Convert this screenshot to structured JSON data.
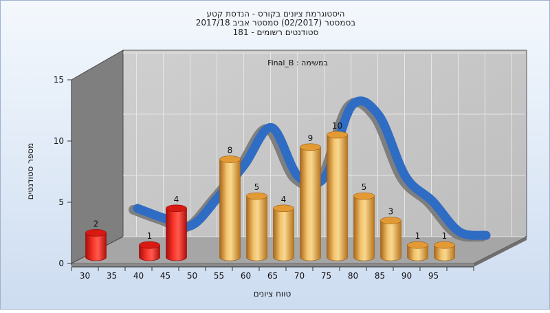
{
  "chart_data": {
    "type": "bar",
    "title_lines": [
      "היסטוגרמת ציונים בקורס - הנדסת קטע",
      "בסמסטר  (02/2017)  סמסטר אביב 2017/18",
      "סטודנטים רשומים - 181"
    ],
    "annotation": "במשימה : Final_B",
    "xlabel": "טווח ציונים",
    "ylabel": "מספר סטודנטים",
    "x_tick_labels": [
      "30",
      "35",
      "40",
      "45",
      "50",
      "55",
      "60",
      "65",
      "70",
      "75",
      "80",
      "85",
      "90",
      "95"
    ],
    "y_tick_labels": [
      "0",
      "5",
      "10",
      "15"
    ],
    "ylim": [
      0,
      15
    ],
    "grid": true,
    "view": "3d",
    "bars": [
      {
        "label": "30",
        "value": 2,
        "color": "red"
      },
      {
        "label": "40",
        "value": 1,
        "color": "red"
      },
      {
        "label": "45",
        "value": 4,
        "color": "red"
      },
      {
        "label": "55",
        "value": 8,
        "color": "orange"
      },
      {
        "label": "60",
        "value": 5,
        "color": "orange"
      },
      {
        "label": "65",
        "value": 4,
        "color": "orange"
      },
      {
        "label": "70",
        "value": 9,
        "color": "orange"
      },
      {
        "label": "75",
        "value": 10,
        "color": "orange"
      },
      {
        "label": "80",
        "value": 5,
        "color": "orange"
      },
      {
        "label": "85",
        "value": 3,
        "color": "orange"
      },
      {
        "label": "90",
        "value": 1,
        "color": "orange"
      },
      {
        "label": "95",
        "value": 1,
        "color": "orange"
      }
    ],
    "curve": {
      "x": [
        35,
        40,
        45,
        50,
        55,
        60,
        65,
        70,
        75,
        80,
        85,
        90,
        95,
        100
      ],
      "y": [
        3.4,
        2.6,
        2.0,
        4.3,
        7.0,
        10.0,
        6.0,
        6.0,
        11.8,
        11.0,
        6.0,
        4.0,
        1.5,
        1.2
      ]
    },
    "colors": {
      "red": "#e41b17",
      "orange": "#e8a33c",
      "curve": "#2f6cc4",
      "curve_back": "#777777",
      "back_wall": "#c6c6c6",
      "left_wall": "#808080",
      "floor": "#a9a9a9"
    }
  }
}
